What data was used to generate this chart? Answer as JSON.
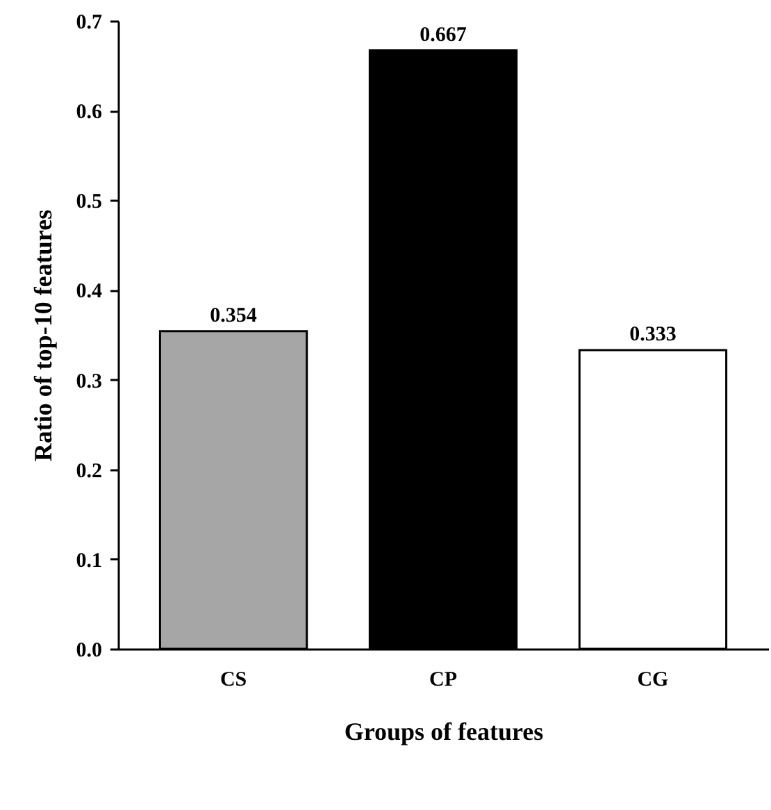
{
  "chart_data": {
    "type": "bar",
    "xlabel": "Groups of features",
    "ylabel": "Ratio of top-10 features",
    "categories": [
      "CS",
      "CP",
      "CG"
    ],
    "values": [
      0.354,
      0.667,
      0.333
    ],
    "colors": [
      "#a6a6a6",
      "#000000",
      "#ffffff"
    ],
    "ylim": [
      0,
      0.7
    ],
    "yticks": [
      {
        "value": 0,
        "label": "0.0"
      },
      {
        "value": 0.1,
        "label": "0.1"
      },
      {
        "value": 0.2,
        "label": "0.2"
      },
      {
        "value": 0.3,
        "label": "0.3"
      },
      {
        "value": 0.4,
        "label": "0.4"
      },
      {
        "value": 0.5,
        "label": "0.5"
      },
      {
        "value": 0.6,
        "label": "0.6"
      },
      {
        "value": 0.7,
        "label": "0.7"
      }
    ],
    "data_labels": true
  }
}
